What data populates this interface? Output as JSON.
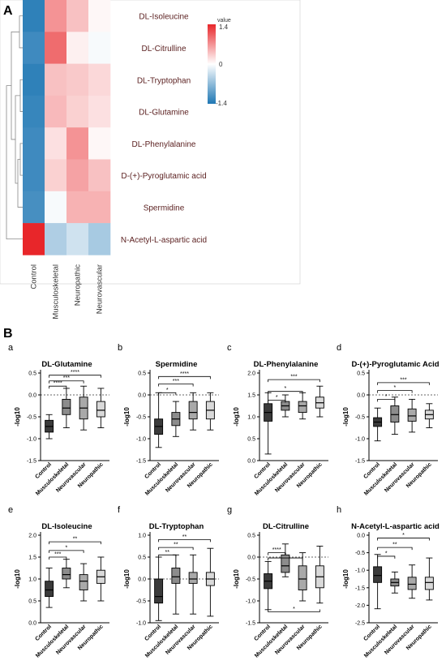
{
  "panel_a": {
    "label": "A",
    "colorbar": {
      "title": "value",
      "max_label": "1.4",
      "mid_label": "0",
      "min_label": "-1.4"
    },
    "columns": [
      "Control",
      "Musculoskeletal",
      "Neuropathic",
      "Neurovascular"
    ],
    "rows": [
      "DL-Isoleucine",
      "DL-Citrulline",
      "DL-Tryptophan",
      "DL-Glutamine",
      "DL-Phenylalanine",
      "D-(+)-Pyroglutamic acid",
      "Spermidine",
      "N-Acetyl-L-aspartic acid"
    ],
    "colors": {
      "low": "#1f77b4",
      "mid": "#ffffff",
      "high": "#e8262a"
    }
  },
  "panel_b": {
    "label": "B",
    "ylabel": "-log10"
  },
  "chart_data": [
    {
      "type": "heatmap",
      "title": "",
      "x": [
        "Control",
        "Musculoskeletal",
        "Neuropathic",
        "Neurovascular"
      ],
      "y": [
        "DL-Isoleucine",
        "DL-Citrulline",
        "DL-Tryptophan",
        "DL-Glutamine",
        "DL-Phenylalanine",
        "D-(+)-Pyroglutamic acid",
        "Spermidine",
        "N-Acetyl-L-aspartic acid"
      ],
      "values": [
        [
          -1.3,
          0.7,
          0.4,
          0.05
        ],
        [
          -1.2,
          0.95,
          0.1,
          -0.05
        ],
        [
          -1.3,
          0.4,
          0.35,
          0.25
        ],
        [
          -1.25,
          0.45,
          0.3,
          0.2
        ],
        [
          -1.2,
          0.2,
          0.7,
          0.05
        ],
        [
          -1.2,
          0.3,
          0.6,
          0.4
        ],
        [
          -1.15,
          -0.05,
          0.5,
          0.5
        ],
        [
          1.4,
          -0.5,
          -0.3,
          -0.55
        ]
      ],
      "zlim": [
        -1.4,
        1.4
      ]
    },
    {
      "type": "box",
      "letter": "a",
      "title": "DL-Glutamine",
      "categories": [
        "Control",
        "Musculoskeletal",
        "Neurovascular",
        "Neuropathic"
      ],
      "ylim": [
        -1.5,
        0.5
      ],
      "yticks": [
        "-1.5",
        "-1.0",
        "-0.5",
        "0.0",
        "0.5"
      ],
      "boxes": [
        {
          "min": -1.0,
          "q1": -0.85,
          "median": -0.72,
          "q3": -0.58,
          "max": -0.45
        },
        {
          "min": -0.75,
          "q1": -0.45,
          "median": -0.3,
          "q3": -0.1,
          "max": 0.15
        },
        {
          "min": -0.8,
          "q1": -0.55,
          "median": -0.3,
          "q3": -0.05,
          "max": 0.2
        },
        {
          "min": -0.75,
          "q1": -0.5,
          "median": -0.35,
          "q3": -0.15,
          "max": 0.15
        }
      ],
      "sig": [
        {
          "from": 0,
          "to": 1,
          "y": 0.2,
          "label": "****"
        },
        {
          "from": 0,
          "to": 2,
          "y": 0.32,
          "label": "***"
        },
        {
          "from": 0,
          "to": 3,
          "y": 0.45,
          "label": "****"
        }
      ]
    },
    {
      "type": "box",
      "letter": "b",
      "title": "Spermidine",
      "categories": [
        "Control",
        "Musculoskeletal",
        "Neurovascular",
        "Neuropathic"
      ],
      "ylim": [
        -1.5,
        0.5
      ],
      "yticks": [
        "-1.5",
        "-1.0",
        "-0.5",
        "0.0",
        "0.5"
      ],
      "boxes": [
        {
          "min": -1.2,
          "q1": -0.9,
          "median": -0.72,
          "q3": -0.55,
          "max": 0.05
        },
        {
          "min": -0.95,
          "q1": -0.7,
          "median": -0.55,
          "q3": -0.4,
          "max": -0.15
        },
        {
          "min": -0.8,
          "q1": -0.55,
          "median": -0.4,
          "q3": -0.15,
          "max": 0.05
        },
        {
          "min": -0.8,
          "q1": -0.55,
          "median": -0.35,
          "q3": -0.15,
          "max": 0.05
        }
      ],
      "sig": [
        {
          "from": 0,
          "to": 1,
          "y": 0.05,
          "label": "*"
        },
        {
          "from": 0,
          "to": 2,
          "y": 0.25,
          "label": "***"
        },
        {
          "from": 0,
          "to": 3,
          "y": 0.42,
          "label": "****"
        }
      ]
    },
    {
      "type": "box",
      "letter": "c",
      "title": "DL-Phenylalanine",
      "categories": [
        "Control",
        "Musculoskeletal",
        "Neurovascular",
        "Neuropathic"
      ],
      "ylim": [
        0.0,
        2.0
      ],
      "yticks": [
        "0.0",
        "0.5",
        "1.0",
        "1.5",
        "2.0"
      ],
      "boxes": [
        {
          "min": 0.15,
          "q1": 0.9,
          "median": 1.1,
          "q3": 1.3,
          "max": 1.55
        },
        {
          "min": 1.0,
          "q1": 1.15,
          "median": 1.25,
          "q3": 1.35,
          "max": 1.5
        },
        {
          "min": 0.95,
          "q1": 1.1,
          "median": 1.25,
          "q3": 1.35,
          "max": 1.55
        },
        {
          "min": 1.0,
          "q1": 1.2,
          "median": 1.32,
          "q3": 1.45,
          "max": 1.7
        }
      ],
      "sig": [
        {
          "from": 0,
          "to": 1,
          "y": 1.38,
          "label": "*"
        },
        {
          "from": 0,
          "to": 2,
          "y": 1.58,
          "label": "*"
        },
        {
          "from": 0,
          "to": 3,
          "y": 1.85,
          "label": "***"
        }
      ]
    },
    {
      "type": "box",
      "letter": "d",
      "title": "D-(+)-Pyroglutamic Acid",
      "categories": [
        "Control",
        "Musculoskeletal",
        "Neurovascular",
        "Neuropathic"
      ],
      "ylim": [
        -1.5,
        0.5
      ],
      "yticks": [
        "-1.5",
        "-1.0",
        "-0.5",
        "0.0",
        "0.5"
      ],
      "boxes": [
        {
          "min": -1.05,
          "q1": -0.72,
          "median": -0.62,
          "q3": -0.52,
          "max": -0.3
        },
        {
          "min": -0.9,
          "q1": -0.62,
          "median": -0.45,
          "q3": -0.25,
          "max": -0.05
        },
        {
          "min": -0.85,
          "q1": -0.6,
          "median": -0.48,
          "q3": -0.32,
          "max": -0.1
        },
        {
          "min": -0.75,
          "q1": -0.55,
          "median": -0.45,
          "q3": -0.35,
          "max": -0.2
        }
      ],
      "sig": [
        {
          "from": 0,
          "to": 1,
          "y": -0.1,
          "label": "*"
        },
        {
          "from": 0,
          "to": 2,
          "y": 0.1,
          "label": "*"
        },
        {
          "from": 0,
          "to": 3,
          "y": 0.28,
          "label": "***"
        }
      ]
    },
    {
      "type": "box",
      "letter": "e",
      "title": "DL-Isoleucine",
      "categories": [
        "Control",
        "Musculoskeletal",
        "Neurovascular",
        "Neuropathic"
      ],
      "ylim": [
        0.0,
        2.0
      ],
      "yticks": [
        "0.0",
        "0.5",
        "1.0",
        "1.5",
        "2.0"
      ],
      "boxes": [
        {
          "min": 0.35,
          "q1": 0.6,
          "median": 0.75,
          "q3": 0.95,
          "max": 1.25
        },
        {
          "min": 0.8,
          "q1": 1.0,
          "median": 1.1,
          "q3": 1.25,
          "max": 1.45
        },
        {
          "min": 0.5,
          "q1": 0.75,
          "median": 0.95,
          "q3": 1.1,
          "max": 1.35
        },
        {
          "min": 0.5,
          "q1": 0.9,
          "median": 1.05,
          "q3": 1.2,
          "max": 1.5
        }
      ],
      "sig": [
        {
          "from": 0,
          "to": 1,
          "y": 1.5,
          "label": "***"
        },
        {
          "from": 0,
          "to": 2,
          "y": 1.65,
          "label": "*"
        },
        {
          "from": 0,
          "to": 3,
          "y": 1.85,
          "label": "**"
        }
      ]
    },
    {
      "type": "box",
      "letter": "f",
      "title": "DL-Tryptophan",
      "categories": [
        "Control",
        "Musculoskeletal",
        "Neurovascular",
        "Neuropathic"
      ],
      "ylim": [
        -1.0,
        1.0
      ],
      "yticks": [
        "-1.0",
        "-0.5",
        "0.0",
        "0.5",
        "1.0"
      ],
      "boxes": [
        {
          "min": -0.95,
          "q1": -0.55,
          "median": -0.4,
          "q3": 0.0,
          "max": 0.5
        },
        {
          "min": -0.8,
          "q1": -0.1,
          "median": 0.05,
          "q3": 0.25,
          "max": 0.55
        },
        {
          "min": -0.8,
          "q1": -0.1,
          "median": 0.0,
          "q3": 0.15,
          "max": 0.55
        },
        {
          "min": -0.85,
          "q1": -0.15,
          "median": 0.0,
          "q3": 0.15,
          "max": 0.7
        }
      ],
      "sig": [
        {
          "from": 0,
          "to": 1,
          "y": 0.55,
          "label": "**"
        },
        {
          "from": 0,
          "to": 2,
          "y": 0.72,
          "label": "**"
        },
        {
          "from": 0,
          "to": 3,
          "y": 0.9,
          "label": "**"
        }
      ]
    },
    {
      "type": "box",
      "letter": "g",
      "title": "DL-Citrulline",
      "categories": [
        "Control",
        "Musculoskeletal",
        "Neurovascular",
        "Neuropathic"
      ],
      "ylim": [
        -1.5,
        0.5
      ],
      "yticks": [
        "-1.5",
        "-1.0",
        "-0.5",
        "0.0",
        "0.5"
      ],
      "boxes": [
        {
          "min": -1.2,
          "q1": -0.72,
          "median": -0.55,
          "q3": -0.38,
          "max": -0.1
        },
        {
          "min": -0.45,
          "q1": -0.35,
          "median": -0.2,
          "q3": 0.05,
          "max": 0.3
        },
        {
          "min": -1.0,
          "q1": -0.75,
          "median": -0.5,
          "q3": -0.2,
          "max": 0.1
        },
        {
          "min": -1.05,
          "q1": -0.7,
          "median": -0.45,
          "q3": -0.2,
          "max": 0.25
        }
      ],
      "sig": [
        {
          "from": 0,
          "to": 1,
          "y": 0.1,
          "label": "****"
        },
        {
          "from": 0,
          "to": 2,
          "y": -0.02,
          "label": "*"
        },
        {
          "from": 0,
          "to": 3,
          "y": -1.25,
          "label": "*",
          "below": true
        }
      ]
    },
    {
      "type": "box",
      "letter": "h",
      "title": "N-Acetyl-L-aspartic acid",
      "categories": [
        "Control",
        "Musculoskeletal",
        "Neurovascular",
        "Neuropathic"
      ],
      "ylim": [
        -2.5,
        0.0
      ],
      "yticks": [
        "-2.5",
        "-2.0",
        "-1.5",
        "-1.0",
        "-0.5",
        "0.0"
      ],
      "boxes": [
        {
          "min": -2.1,
          "q1": -1.35,
          "median": -1.15,
          "q3": -0.9,
          "max": -0.55
        },
        {
          "min": -1.65,
          "q1": -1.45,
          "median": -1.35,
          "q3": -1.25,
          "max": -1.05
        },
        {
          "min": -1.8,
          "q1": -1.55,
          "median": -1.4,
          "q3": -1.2,
          "max": -0.85
        },
        {
          "min": -1.85,
          "q1": -1.55,
          "median": -1.35,
          "q3": -1.2,
          "max": -0.65
        }
      ],
      "sig": [
        {
          "from": 0,
          "to": 1,
          "y": -0.6,
          "label": "*"
        },
        {
          "from": 0,
          "to": 2,
          "y": -0.35,
          "label": "**"
        },
        {
          "from": 0,
          "to": 3,
          "y": -0.08,
          "label": "*"
        }
      ]
    }
  ],
  "box_fill_colors": [
    "#3a3a3a",
    "#8c8c8c",
    "#a9a9a9",
    "#d9d9d9"
  ]
}
